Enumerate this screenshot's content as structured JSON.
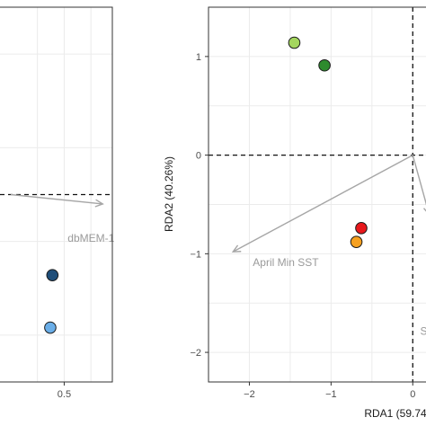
{
  "chart_data": [
    {
      "panel": "left",
      "type": "scatter",
      "title": "",
      "xlabel": "",
      "ylabel": "",
      "xlim": [
        -0.1,
        0.95
      ],
      "ylim": [
        -1.0,
        1.0
      ],
      "x_ticks": [
        0.5
      ],
      "y_ticks": [],
      "grid": true,
      "reference_lines": {
        "x": null,
        "y": 0
      },
      "points": [
        {
          "x": 0.39,
          "y": -0.43,
          "color": "#1f4e79"
        },
        {
          "x": 0.37,
          "y": -0.71,
          "color": "#6aaee8"
        }
      ],
      "vectors": [
        {
          "label": "dbMEM-1",
          "x": 0.86,
          "y": -0.05
        }
      ]
    },
    {
      "panel": "right",
      "type": "scatter",
      "title": "",
      "xlabel": "RDA1 (59.74",
      "ylabel": "RDA2 (40.26%)",
      "xlim": [
        -2.5,
        0.25
      ],
      "ylim": [
        -2.3,
        1.5
      ],
      "x_ticks": [
        -2,
        -1,
        0
      ],
      "y_ticks": [
        1,
        0,
        -1,
        -2
      ],
      "grid": true,
      "reference_lines": {
        "x": 0,
        "y": 0
      },
      "points": [
        {
          "x": -1.45,
          "y": 1.14,
          "color": "#a4d65e"
        },
        {
          "x": -1.08,
          "y": 0.91,
          "color": "#2e8b2e"
        },
        {
          "x": -0.63,
          "y": -0.74,
          "color": "#e8181c"
        },
        {
          "x": -0.69,
          "y": -0.88,
          "color": "#f5a020"
        }
      ],
      "vectors": [
        {
          "label": "April Min SST",
          "x": -2.2,
          "y": -0.98
        },
        {
          "label": "S",
          "x": 0.2,
          "y": -0.6
        }
      ]
    }
  ]
}
